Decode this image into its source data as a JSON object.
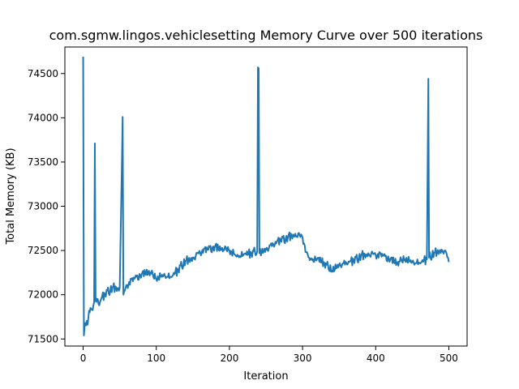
{
  "chart_data": {
    "type": "line",
    "title": "com.sgmw.lingos.vehiclesetting Memory Curve over 500 iterations",
    "xlabel": "Iteration",
    "ylabel": "Total Memory (KB)",
    "xlim": [
      -25,
      525
    ],
    "ylim": [
      71420,
      74800
    ],
    "xticks": [
      0,
      100,
      200,
      300,
      400,
      500
    ],
    "yticks": [
      71500,
      72000,
      72500,
      73000,
      73500,
      74000,
      74500
    ],
    "grid": false,
    "line_color": "#1f77b4",
    "anchors": [
      [
        0,
        74690
      ],
      [
        1,
        71540
      ],
      [
        3,
        71680
      ],
      [
        6,
        71660
      ],
      [
        8,
        71820
      ],
      [
        12,
        71830
      ],
      [
        15,
        71920
      ],
      [
        16,
        73710
      ],
      [
        17,
        71930
      ],
      [
        20,
        71950
      ],
      [
        22,
        71880
      ],
      [
        25,
        71960
      ],
      [
        30,
        72000
      ],
      [
        40,
        72080
      ],
      [
        50,
        72080
      ],
      [
        54,
        74010
      ],
      [
        55,
        72000
      ],
      [
        60,
        72110
      ],
      [
        70,
        72180
      ],
      [
        80,
        72230
      ],
      [
        90,
        72270
      ],
      [
        100,
        72180
      ],
      [
        110,
        72220
      ],
      [
        120,
        72200
      ],
      [
        130,
        72280
      ],
      [
        140,
        72380
      ],
      [
        150,
        72420
      ],
      [
        160,
        72480
      ],
      [
        170,
        72510
      ],
      [
        180,
        72540
      ],
      [
        190,
        72530
      ],
      [
        200,
        72500
      ],
      [
        210,
        72430
      ],
      [
        220,
        72460
      ],
      [
        230,
        72470
      ],
      [
        238,
        72490
      ],
      [
        239,
        74570
      ],
      [
        240,
        74560
      ],
      [
        241,
        72470
      ],
      [
        250,
        72520
      ],
      [
        260,
        72570
      ],
      [
        270,
        72610
      ],
      [
        280,
        72650
      ],
      [
        290,
        72690
      ],
      [
        300,
        72650
      ],
      [
        305,
        72480
      ],
      [
        310,
        72390
      ],
      [
        320,
        72410
      ],
      [
        330,
        72360
      ],
      [
        340,
        72270
      ],
      [
        350,
        72340
      ],
      [
        360,
        72360
      ],
      [
        370,
        72380
      ],
      [
        380,
        72440
      ],
      [
        390,
        72470
      ],
      [
        400,
        72450
      ],
      [
        410,
        72440
      ],
      [
        420,
        72400
      ],
      [
        430,
        72370
      ],
      [
        440,
        72400
      ],
      [
        450,
        72370
      ],
      [
        460,
        72360
      ],
      [
        470,
        72400
      ],
      [
        472,
        74440
      ],
      [
        473,
        72420
      ],
      [
        480,
        72470
      ],
      [
        490,
        72510
      ],
      [
        495,
        72500
      ],
      [
        500,
        72370
      ]
    ],
    "variation": {
      "amplitude": 55,
      "seeds": [
        0.61,
        0.27,
        0.88,
        0.14,
        0.53,
        0.79,
        0.35,
        0.92,
        0.08,
        0.46,
        0.71,
        0.19,
        0.64,
        0.33,
        0.97,
        0.41,
        0.05,
        0.58,
        0.83,
        0.24
      ]
    }
  }
}
